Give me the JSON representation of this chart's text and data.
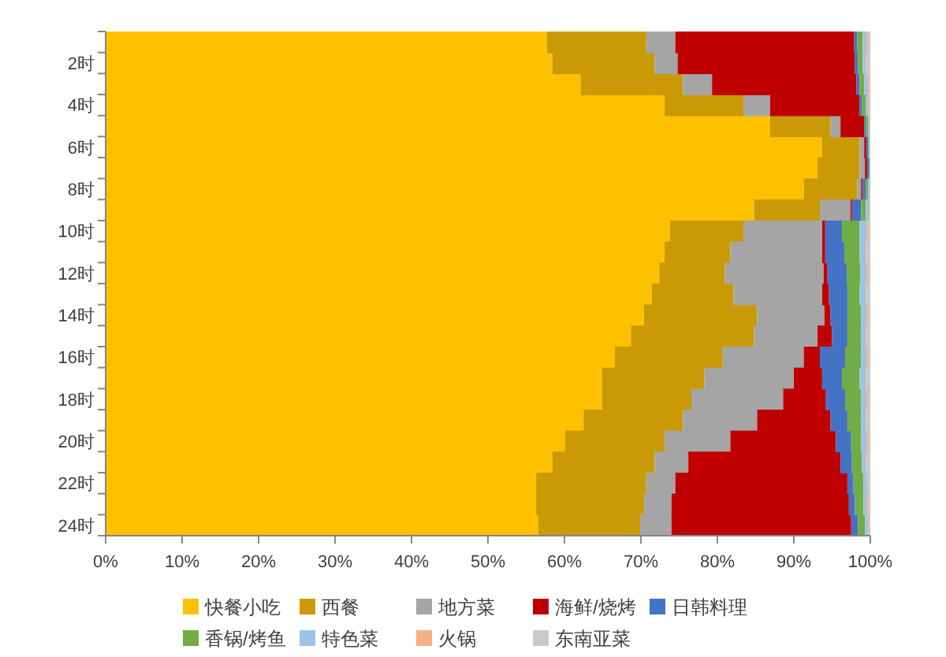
{
  "chart_data": {
    "type": "bar",
    "orientation": "horizontal",
    "stacked": true,
    "legend": "bottom",
    "categories": [
      null,
      "2时",
      null,
      "4时",
      null,
      "6时",
      null,
      "8时",
      null,
      "10时",
      null,
      "12时",
      null,
      "14时",
      null,
      "16时",
      null,
      "18时",
      null,
      "20时",
      null,
      "22时",
      null,
      "24时"
    ],
    "xlim": [
      0,
      100
    ],
    "xticks": [
      {
        "value": 0,
        "label": "0%"
      },
      {
        "value": 10,
        "label": "10%"
      },
      {
        "value": 20,
        "label": "20%"
      },
      {
        "value": 30,
        "label": "30%"
      },
      {
        "value": 40,
        "label": "40%"
      },
      {
        "value": 50,
        "label": "50%"
      },
      {
        "value": 60,
        "label": "60%"
      },
      {
        "value": 70,
        "label": "70%"
      },
      {
        "value": 80,
        "label": "80%"
      },
      {
        "value": 90,
        "label": "90%"
      },
      {
        "value": 100,
        "label": "100%"
      }
    ],
    "series": [
      {
        "name": "快餐小吃",
        "color": "#ffc000",
        "values": [
          57.7,
          58.4,
          62.1,
          73.1,
          86.9,
          93.7,
          93.1,
          91.3,
          84.8,
          73.8,
          73.1,
          72.4,
          71.4,
          70.4,
          68.7,
          66.6,
          64.9,
          64.9,
          62.5,
          60.1,
          58.4,
          56.3,
          56.3,
          56.6
        ]
      },
      {
        "name": "西餐",
        "color": "#c99a06",
        "values": [
          13.0,
          13.4,
          13.4,
          10.3,
          7.9,
          4.9,
          5.5,
          7.0,
          8.6,
          9.6,
          8.6,
          8.6,
          10.7,
          14.8,
          16.1,
          14.1,
          13.4,
          11.7,
          13.0,
          13.0,
          13.4,
          14.4,
          14.1,
          13.3
        ]
      },
      {
        "name": "地方菜",
        "color": "#a5a5a5",
        "values": [
          3.8,
          3.0,
          3.8,
          3.5,
          1.3,
          0.6,
          0.7,
          0.5,
          4.0,
          10.3,
          12.0,
          12.9,
          11.6,
          8.8,
          8.3,
          10.6,
          11.7,
          12.0,
          9.7,
          8.6,
          4.4,
          3.8,
          3.6,
          4.1
        ]
      },
      {
        "name": "海鲜/烧烤",
        "color": "#c00000",
        "values": [
          23.4,
          23.2,
          18.9,
          11.7,
          3.1,
          0.3,
          0.3,
          0.2,
          0.2,
          0.4,
          0.4,
          0.5,
          0.9,
          0.8,
          1.9,
          2.1,
          3.7,
          5.6,
          9.6,
          13.8,
          19.9,
          22.5,
          23.2,
          23.5
        ]
      },
      {
        "name": "日韩料理",
        "color": "#4472c4",
        "values": [
          0.4,
          0.4,
          0.4,
          0.3,
          0.2,
          0.2,
          0.2,
          0.4,
          1.2,
          2.2,
          2.5,
          2.5,
          2.4,
          2.2,
          2.0,
          3.3,
          2.6,
          2.5,
          2.2,
          2.0,
          1.5,
          0.8,
          0.8,
          0.9
        ]
      },
      {
        "name": "香锅/烤鱼",
        "color": "#70ad47",
        "values": [
          0.7,
          0.6,
          0.6,
          0.5,
          0.3,
          0.1,
          0.1,
          0.3,
          0.6,
          2.3,
          2.0,
          1.8,
          1.6,
          1.8,
          1.8,
          2.1,
          2.3,
          2.1,
          1.8,
          1.3,
          1.3,
          1.3,
          1.1,
          0.9
        ]
      },
      {
        "name": "特色菜",
        "color": "#9dc3e6",
        "values": [
          0.5,
          0.4,
          0.4,
          0.3,
          0.2,
          0.1,
          0.1,
          0.2,
          0.4,
          0.9,
          0.8,
          0.8,
          0.8,
          0.7,
          0.6,
          0.7,
          0.8,
          0.7,
          0.6,
          0.7,
          0.5,
          0.5,
          0.4,
          0.4
        ]
      },
      {
        "name": "火锅",
        "color": "#f4b183",
        "values": [
          0.2,
          0.1,
          0.2,
          0.1,
          0.1,
          0,
          0,
          0,
          0.1,
          0.2,
          0.1,
          0.2,
          0.1,
          0.2,
          0.1,
          0.2,
          0.1,
          0.2,
          0.1,
          0.2,
          0.1,
          0.1,
          0.2,
          0.1
        ]
      },
      {
        "name": "东南亚菜",
        "color": "#c9c9c9",
        "values": [
          0.3,
          0.5,
          0.2,
          0.2,
          0,
          0.1,
          0,
          0.1,
          0.1,
          0.3,
          0.5,
          0.3,
          0.5,
          0.3,
          0.5,
          0.3,
          0.5,
          0.3,
          0.5,
          0.3,
          0.5,
          0.3,
          0.3,
          0.2
        ]
      }
    ]
  }
}
